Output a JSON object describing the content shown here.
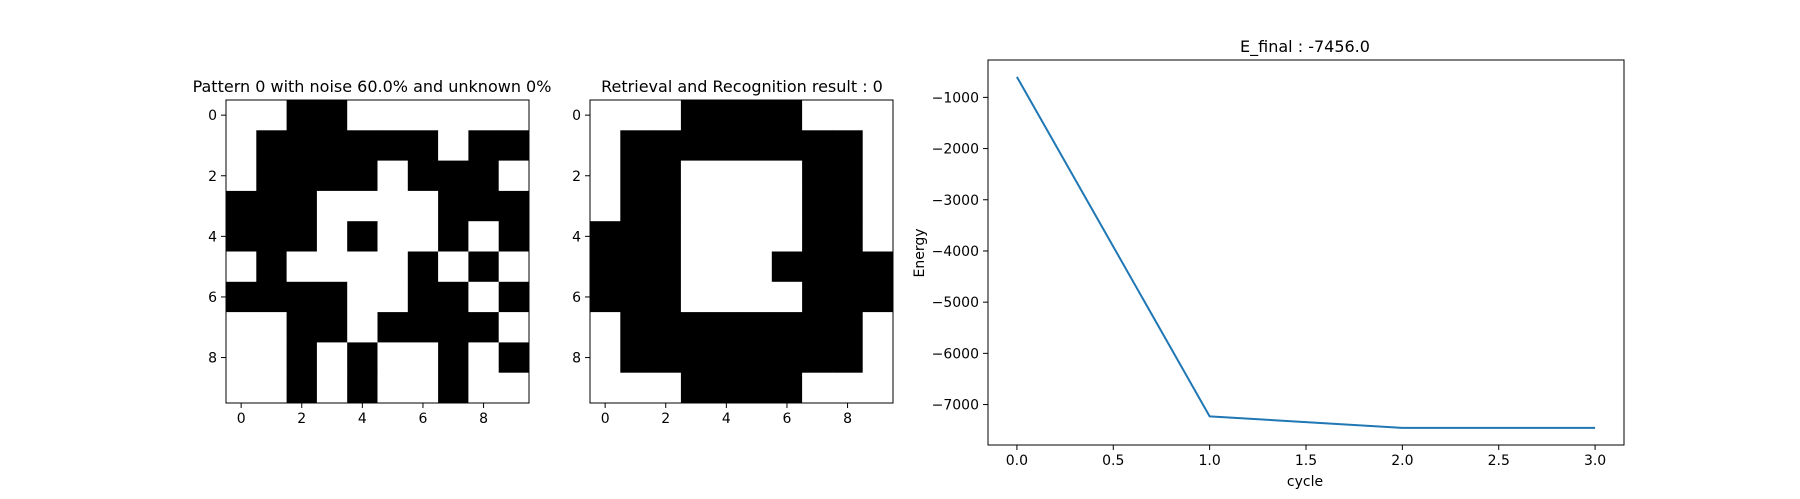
{
  "chart_data": [
    {
      "type": "heatmap",
      "title": "Pattern 0 with noise 60.0% and unknown 0%",
      "rows": 10,
      "cols": 10,
      "colormap": {
        "0": "#ffffff",
        "1": "#000000"
      },
      "x_ticks": [
        0,
        2,
        4,
        6,
        8
      ],
      "y_ticks": [
        0,
        2,
        4,
        6,
        8
      ],
      "grid": false,
      "matrix": [
        [
          0,
          0,
          1,
          1,
          0,
          0,
          0,
          0,
          0,
          0
        ],
        [
          0,
          1,
          1,
          1,
          1,
          1,
          1,
          0,
          1,
          1
        ],
        [
          0,
          1,
          1,
          1,
          1,
          0,
          1,
          1,
          1,
          0
        ],
        [
          1,
          1,
          1,
          0,
          0,
          0,
          0,
          1,
          1,
          1
        ],
        [
          1,
          1,
          1,
          0,
          1,
          0,
          0,
          1,
          0,
          1
        ],
        [
          0,
          1,
          0,
          0,
          0,
          0,
          1,
          0,
          1,
          0
        ],
        [
          1,
          1,
          1,
          1,
          0,
          0,
          1,
          1,
          0,
          1
        ],
        [
          0,
          0,
          1,
          1,
          0,
          1,
          1,
          1,
          1,
          0
        ],
        [
          0,
          0,
          1,
          0,
          1,
          0,
          0,
          1,
          0,
          1
        ],
        [
          0,
          0,
          1,
          0,
          1,
          0,
          0,
          1,
          0,
          0
        ]
      ]
    },
    {
      "type": "heatmap",
      "title": "Retrieval and Recognition result : 0",
      "rows": 10,
      "cols": 10,
      "colormap": {
        "0": "#ffffff",
        "1": "#000000"
      },
      "x_ticks": [
        0,
        2,
        4,
        6,
        8
      ],
      "y_ticks": [
        0,
        2,
        4,
        6,
        8
      ],
      "grid": false,
      "matrix": [
        [
          0,
          0,
          0,
          1,
          1,
          1,
          1,
          0,
          0,
          0
        ],
        [
          0,
          1,
          1,
          1,
          1,
          1,
          1,
          1,
          1,
          0
        ],
        [
          0,
          1,
          1,
          0,
          0,
          0,
          0,
          1,
          1,
          0
        ],
        [
          0,
          1,
          1,
          0,
          0,
          0,
          0,
          1,
          1,
          0
        ],
        [
          1,
          1,
          1,
          0,
          0,
          0,
          0,
          1,
          1,
          0
        ],
        [
          1,
          1,
          1,
          0,
          0,
          0,
          1,
          1,
          1,
          1
        ],
        [
          1,
          1,
          1,
          0,
          0,
          0,
          0,
          1,
          1,
          1
        ],
        [
          0,
          1,
          1,
          1,
          1,
          1,
          1,
          1,
          1,
          0
        ],
        [
          0,
          1,
          1,
          1,
          1,
          1,
          1,
          1,
          1,
          0
        ],
        [
          0,
          0,
          0,
          1,
          1,
          1,
          1,
          0,
          0,
          0
        ]
      ]
    },
    {
      "type": "line",
      "title": "E_final : -7456.0",
      "xlabel": "cycle",
      "ylabel": "Energy",
      "x": [
        0.0,
        1.0,
        2.0,
        3.0
      ],
      "y": [
        -600,
        -7230,
        -7456,
        -7456
      ],
      "xlim": [
        -0.15,
        3.15
      ],
      "ylim": [
        -7790,
        -270
      ],
      "x_ticks": [
        0.0,
        0.5,
        1.0,
        1.5,
        2.0,
        2.5,
        3.0
      ],
      "x_tick_labels": [
        "0.0",
        "0.5",
        "1.0",
        "1.5",
        "2.0",
        "2.5",
        "3.0"
      ],
      "y_ticks": [
        -1000,
        -2000,
        -3000,
        -4000,
        -5000,
        -6000,
        -7000
      ],
      "y_tick_labels": [
        "−1000",
        "−2000",
        "−3000",
        "−4000",
        "−5000",
        "−6000",
        "−7000"
      ],
      "line_color": "#1f77b4",
      "grid": false
    }
  ]
}
